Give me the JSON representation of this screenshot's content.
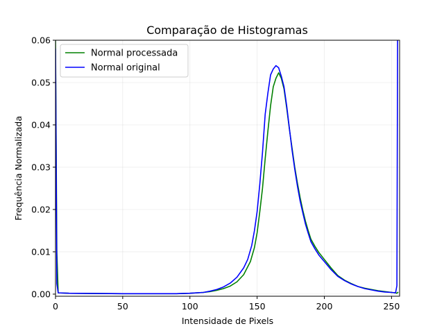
{
  "chart_data": {
    "type": "line",
    "title": "Comparação de Histogramas",
    "xlabel": "Intensidade de Pixels",
    "ylabel": "Frequência Normalizada",
    "xlim": [
      0,
      256
    ],
    "ylim": [
      -0.0005,
      0.06
    ],
    "x_ticks": [
      0,
      50,
      100,
      150,
      200,
      250
    ],
    "x_tick_labels": [
      "0",
      "50",
      "100",
      "150",
      "200",
      "250"
    ],
    "y_ticks": [
      0.0,
      0.01,
      0.02,
      0.03,
      0.04,
      0.05,
      0.06
    ],
    "y_tick_labels": [
      "0.00",
      "0.01",
      "0.02",
      "0.03",
      "0.04",
      "0.05",
      "0.06"
    ],
    "grid": true,
    "legend_position": "top-left",
    "series": [
      {
        "name": "Normal processada",
        "color": "#008000",
        "points": [
          [
            0,
            0.06
          ],
          [
            1,
            0.01
          ],
          [
            2,
            0.0003
          ],
          [
            10,
            0.0002
          ],
          [
            50,
            0.0001
          ],
          [
            90,
            0.0001
          ],
          [
            100,
            0.0002
          ],
          [
            110,
            0.0004
          ],
          [
            115,
            0.0006
          ],
          [
            120,
            0.0009
          ],
          [
            125,
            0.0013
          ],
          [
            130,
            0.0019
          ],
          [
            135,
            0.0029
          ],
          [
            140,
            0.0046
          ],
          [
            145,
            0.0077
          ],
          [
            148,
            0.011
          ],
          [
            150,
            0.0145
          ],
          [
            152,
            0.0195
          ],
          [
            154,
            0.025
          ],
          [
            156,
            0.032
          ],
          [
            158,
            0.0385
          ],
          [
            160,
            0.0445
          ],
          [
            162,
            0.049
          ],
          [
            164,
            0.051
          ],
          [
            166,
            0.0523
          ],
          [
            168,
            0.051
          ],
          [
            170,
            0.0485
          ],
          [
            172,
            0.044
          ],
          [
            174,
            0.039
          ],
          [
            176,
            0.0345
          ],
          [
            178,
            0.03
          ],
          [
            180,
            0.0262
          ],
          [
            182,
            0.0228
          ],
          [
            184,
            0.0198
          ],
          [
            186,
            0.0172
          ],
          [
            188,
            0.015
          ],
          [
            190,
            0.013
          ],
          [
            193,
            0.0113
          ],
          [
            196,
            0.0098
          ],
          [
            200,
            0.0082
          ],
          [
            205,
            0.0062
          ],
          [
            210,
            0.0044
          ],
          [
            215,
            0.0033
          ],
          [
            220,
            0.0025
          ],
          [
            225,
            0.0018
          ],
          [
            230,
            0.0014
          ],
          [
            235,
            0.0011
          ],
          [
            240,
            0.0008
          ],
          [
            245,
            0.0006
          ],
          [
            250,
            0.0004
          ],
          [
            253,
            0.0003
          ],
          [
            254,
            0.0002
          ],
          [
            255,
            0.0005
          ]
        ]
      },
      {
        "name": "Normal original",
        "color": "#0000ff",
        "points": [
          [
            0,
            0.058
          ],
          [
            1,
            0.0025
          ],
          [
            2,
            0.0003
          ],
          [
            10,
            0.0002
          ],
          [
            50,
            0.0001
          ],
          [
            90,
            0.0001
          ],
          [
            100,
            0.0002
          ],
          [
            110,
            0.0004
          ],
          [
            115,
            0.0007
          ],
          [
            120,
            0.0011
          ],
          [
            125,
            0.0017
          ],
          [
            130,
            0.0026
          ],
          [
            135,
            0.004
          ],
          [
            140,
            0.0062
          ],
          [
            143,
            0.0082
          ],
          [
            146,
            0.0115
          ],
          [
            148,
            0.015
          ],
          [
            150,
            0.0195
          ],
          [
            152,
            0.026
          ],
          [
            154,
            0.0335
          ],
          [
            156,
            0.0425
          ],
          [
            158,
            0.0475
          ],
          [
            160,
            0.0518
          ],
          [
            162,
            0.0532
          ],
          [
            164,
            0.054
          ],
          [
            166,
            0.0535
          ],
          [
            168,
            0.0515
          ],
          [
            170,
            0.049
          ],
          [
            172,
            0.0445
          ],
          [
            174,
            0.0392
          ],
          [
            176,
            0.034
          ],
          [
            178,
            0.0295
          ],
          [
            180,
            0.0255
          ],
          [
            182,
            0.022
          ],
          [
            184,
            0.0192
          ],
          [
            186,
            0.0165
          ],
          [
            188,
            0.0144
          ],
          [
            190,
            0.0124
          ],
          [
            193,
            0.0107
          ],
          [
            196,
            0.0092
          ],
          [
            200,
            0.0077
          ],
          [
            205,
            0.0058
          ],
          [
            210,
            0.0042
          ],
          [
            215,
            0.0032
          ],
          [
            220,
            0.0024
          ],
          [
            225,
            0.0018
          ],
          [
            230,
            0.0013
          ],
          [
            235,
            0.001
          ],
          [
            240,
            0.0007
          ],
          [
            245,
            0.0005
          ],
          [
            250,
            0.0004
          ],
          [
            253,
            0.0003
          ],
          [
            254,
            0.002
          ],
          [
            254.5,
            0.06
          ]
        ]
      }
    ]
  }
}
